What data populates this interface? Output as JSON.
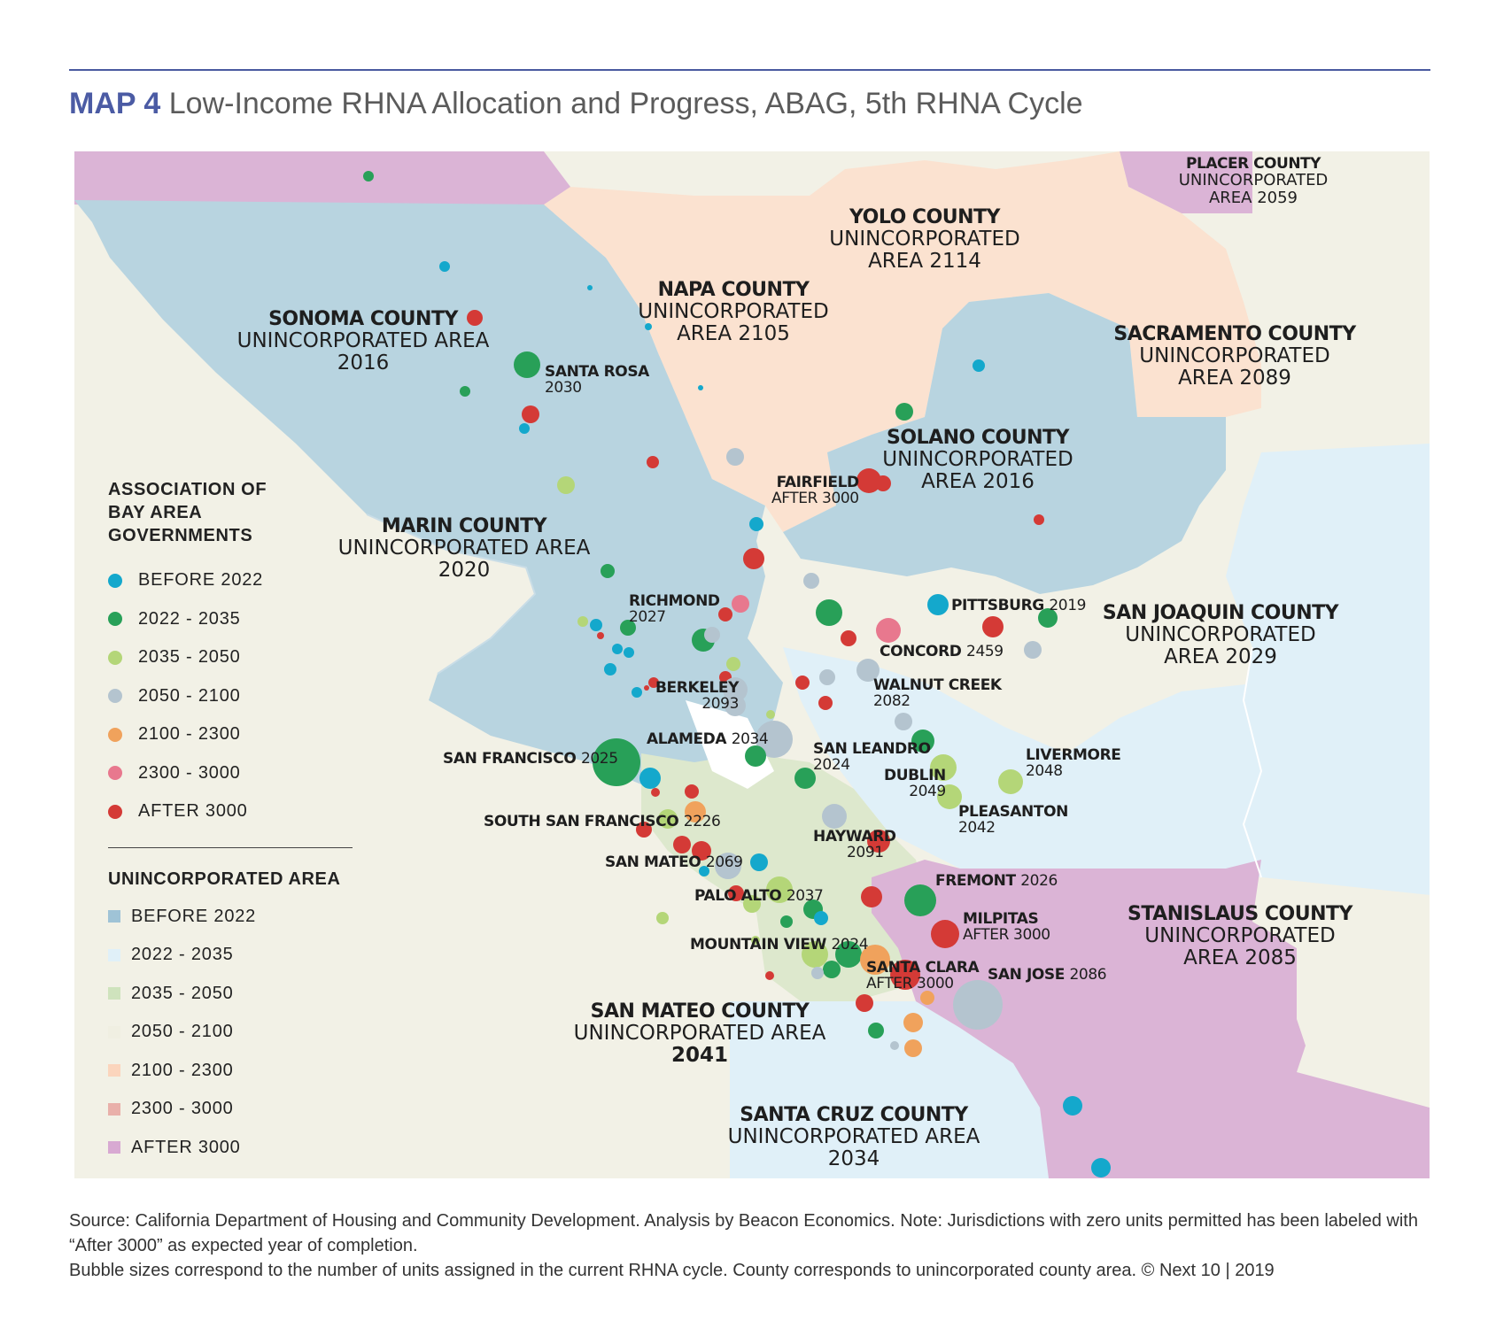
{
  "title": {
    "prefix": "MAP 4",
    "text": "Low-Income RHNA Allocation and Progress, ABAG, 5th RHNA Cycle"
  },
  "colors": {
    "bubble": {
      "before_2022": "#14a8cc",
      "2022_2035": "#28a058",
      "2035_2050": "#b4d678",
      "2050_2100": "#b4c4cf",
      "2100_2300": "#f0a25c",
      "2300_3000": "#e8788e",
      "after_3000": "#d43a36"
    },
    "area": {
      "before_2022": "#b8d4e0",
      "2022_2035": "#e0f0f8",
      "2035_2050": "#dde8cd",
      "2050_2100": "#f2f1e6",
      "2100_2300": "#fbe2d0",
      "2300_3000": "#e9b8b1",
      "after_3000": "#dbb4d6"
    }
  },
  "counties": [
    {
      "name": "SONOMA COUNTY",
      "unincorporated": [
        "UNINCORPORATED AREA",
        "2016"
      ]
    },
    {
      "name": "NAPA COUNTY",
      "unincorporated": [
        "UNINCORPORATED",
        "AREA 2105"
      ]
    },
    {
      "name": "YOLO COUNTY",
      "unincorporated": [
        "UNINCORPORATED",
        "AREA 2114"
      ]
    },
    {
      "name": "PLACER COUNTY",
      "unincorporated": [
        "UNINCORPORATED",
        "AREA 2059"
      ]
    },
    {
      "name": "SACRAMENTO COUNTY",
      "unincorporated": [
        "UNINCORPORATED",
        "AREA 2089"
      ]
    },
    {
      "name": "SOLANO COUNTY",
      "unincorporated": [
        "UNINCORPORATED",
        "AREA 2016"
      ]
    },
    {
      "name": "MARIN COUNTY",
      "unincorporated": [
        "UNINCORPORATED AREA",
        "2020"
      ]
    },
    {
      "name": "SAN JOAQUIN COUNTY",
      "unincorporated": [
        "UNINCORPORATED",
        "AREA 2029"
      ]
    },
    {
      "name": "STANISLAUS COUNTY",
      "unincorporated": [
        "UNINCORPORATED",
        "AREA 2085"
      ]
    },
    {
      "name": "SAN MATEO COUNTY",
      "unincorporated": [
        "UNINCORPORATED AREA",
        "2041"
      ]
    },
    {
      "name": "SANTA CRUZ COUNTY",
      "unincorporated": [
        "UNINCORPORATED AREA",
        "2034"
      ]
    }
  ],
  "cities": [
    {
      "name": "SANTA ROSA",
      "year": "2030"
    },
    {
      "name": "FAIRFIELD",
      "year": "AFTER 3000"
    },
    {
      "name": "RICHMOND",
      "year": "2027"
    },
    {
      "name": "PITTSBURG",
      "year": "2019"
    },
    {
      "name": "CONCORD",
      "year": "2459"
    },
    {
      "name": "WALNUT CREEK",
      "year": "2082"
    },
    {
      "name": "BERKELEY",
      "year": "2093"
    },
    {
      "name": "ALAMEDA",
      "year": "2034"
    },
    {
      "name": "SAN FRANCISCO",
      "year": "2025"
    },
    {
      "name": "SAN LEANDRO",
      "year": "2024"
    },
    {
      "name": "LIVERMORE",
      "year": "2048"
    },
    {
      "name": "DUBLIN",
      "year": "2049"
    },
    {
      "name": "PLEASANTON",
      "year": "2042"
    },
    {
      "name": "SOUTH SAN FRANCISCO",
      "year": "2226"
    },
    {
      "name": "HAYWARD",
      "year": "2091"
    },
    {
      "name": "SAN MATEO",
      "year": "2069"
    },
    {
      "name": "FREMONT",
      "year": "2026"
    },
    {
      "name": "PALO ALTO",
      "year": "2037"
    },
    {
      "name": "MILPITAS",
      "year": "AFTER 3000"
    },
    {
      "name": "MOUNTAIN VIEW",
      "year": "2024"
    },
    {
      "name": "SANTA CLARA",
      "year": "AFTER 3000"
    },
    {
      "name": "SAN JOSE",
      "year": "2086"
    }
  ],
  "legend": {
    "bubble_title": "ASSOCIATION OF BAY AREA GOVERNMENTS",
    "bubble_items": [
      {
        "label": "BEFORE 2022",
        "color": "#14a8cc"
      },
      {
        "label": "2022 - 2035",
        "color": "#28a058"
      },
      {
        "label": "2035 - 2050",
        "color": "#b4d678"
      },
      {
        "label": "2050 - 2100",
        "color": "#b4c4cf"
      },
      {
        "label": "2100 - 2300",
        "color": "#f0a25c"
      },
      {
        "label": "2300 - 3000",
        "color": "#e8788e"
      },
      {
        "label": "AFTER 3000",
        "color": "#d43a36"
      }
    ],
    "area_title": "UNINCORPORATED AREA",
    "area_items": [
      {
        "label": "BEFORE 2022",
        "color": "#9fc3d6"
      },
      {
        "label": "2022 - 2035",
        "color": "#e0f0f8"
      },
      {
        "label": "2035 - 2050",
        "color": "#cfe3bd"
      },
      {
        "label": "2050 - 2100",
        "color": "#f0efe2"
      },
      {
        "label": "2100 - 2300",
        "color": "#fbd5bd"
      },
      {
        "label": "2300 - 3000",
        "color": "#e9b0aa"
      },
      {
        "label": "AFTER 3000",
        "color": "#d8a9d2"
      }
    ]
  },
  "footnote": {
    "line1": "Source: California Department of Housing and Community Development. Analysis by Beacon Economics. Note: Jurisdictions with zero units permitted has been labeled with “After 3000” as expected year of completion.",
    "line2": "Bubble sizes correspond to the number of units assigned in the current RHNA cycle. County corresponds to unincorporated county area.  © Next 10 | 2019"
  }
}
